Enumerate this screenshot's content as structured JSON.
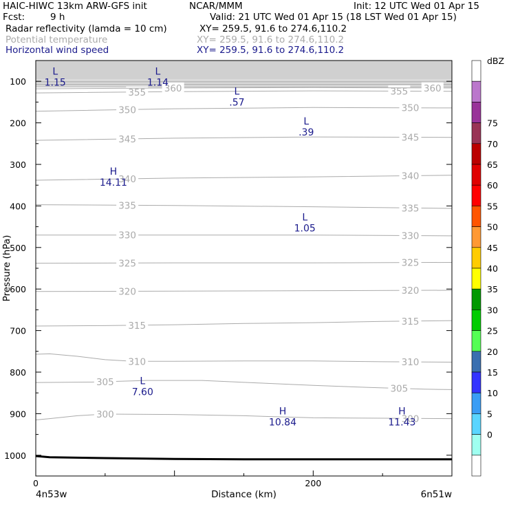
{
  "header": {
    "model": "HAIC-HIWC 13km ARW-GFS init",
    "org": "NCAR/MMM",
    "init": "Init: 12 UTC Wed 01 Apr 15",
    "fcst_label": "Fcst:",
    "fcst_value": "9 h",
    "valid": "Valid: 21 UTC Wed 01 Apr 15 (18 LST Wed 01 Apr 15)",
    "fields": [
      {
        "name": "Radar reflectivity (lamda = 10 cm)",
        "xy": "XY= 259.5, 91.6 to 274.6,110.2"
      },
      {
        "name": "Potential temperature",
        "xy": "XY= 259.5, 91.6 to 274.6,110.2"
      },
      {
        "name": "Horizontal wind speed",
        "xy": "XY= 259.5, 91.6 to 274.6,110.2"
      }
    ]
  },
  "colors": {
    "theta": "#aaaaaa",
    "wind": "#1a1a8c",
    "terrain": "#000000"
  },
  "chart_data": {
    "type": "line",
    "xlabel": "Distance (km)",
    "ylabel": "Pressure (hPa)",
    "xlim": [
      0,
      300
    ],
    "ylim": [
      1050,
      50
    ],
    "x_ticks": [
      0,
      100,
      200
    ],
    "x_tick_labels": [
      "0",
      "",
      "200"
    ],
    "y_ticks": [
      100,
      200,
      300,
      400,
      500,
      600,
      700,
      800,
      900,
      1000
    ],
    "x_end_labels": {
      "left": "4n53w",
      "right": "6n51w"
    },
    "theta_contours": [
      {
        "level": 300,
        "x": [
          0,
          10,
          30,
          50,
          100,
          150,
          200,
          250,
          300
        ],
        "p": [
          915,
          912,
          905,
          901,
          902,
          905,
          910,
          911,
          912
        ],
        "labels": [
          {
            "x": 50,
            "text": "300"
          },
          {
            "x": 270,
            "text": "300"
          }
        ]
      },
      {
        "level": 305,
        "x": [
          0,
          40,
          80,
          120,
          160,
          200,
          240,
          280,
          300
        ],
        "p": [
          825,
          824,
          820,
          820,
          826,
          832,
          837,
          841,
          842
        ],
        "labels": [
          {
            "x": 50,
            "text": "305"
          },
          {
            "x": 262,
            "text": "305"
          }
        ]
      },
      {
        "level": 310,
        "x": [
          0,
          10,
          30,
          50,
          70,
          100,
          150,
          200,
          250,
          300
        ],
        "p": [
          757,
          756,
          762,
          770,
          774,
          774,
          773,
          773,
          775,
          776
        ],
        "labels": [
          {
            "x": 73,
            "text": "310"
          },
          {
            "x": 270,
            "text": "310"
          }
        ]
      },
      {
        "level": 315,
        "x": [
          0,
          50,
          100,
          150,
          200,
          250,
          300
        ],
        "p": [
          689,
          688,
          686,
          683,
          681,
          678,
          676
        ],
        "labels": [
          {
            "x": 73,
            "text": "315"
          },
          {
            "x": 270,
            "text": "315"
          }
        ]
      },
      {
        "level": 320,
        "x": [
          0,
          100,
          200,
          300
        ],
        "p": [
          606,
          605,
          604,
          603
        ],
        "labels": [
          {
            "x": 66,
            "text": "320"
          },
          {
            "x": 270,
            "text": "320"
          }
        ]
      },
      {
        "level": 325,
        "x": [
          0,
          100,
          200,
          300
        ],
        "p": [
          538,
          537,
          537,
          536
        ],
        "labels": [
          {
            "x": 66,
            "text": "325"
          },
          {
            "x": 270,
            "text": "325"
          }
        ]
      },
      {
        "level": 330,
        "x": [
          0,
          100,
          200,
          300
        ],
        "p": [
          470,
          470,
          470,
          472
        ],
        "labels": [
          {
            "x": 66,
            "text": "330"
          },
          {
            "x": 270,
            "text": "330"
          }
        ]
      },
      {
        "level": 335,
        "x": [
          0,
          100,
          200,
          300
        ],
        "p": [
          397,
          399,
          402,
          406
        ],
        "labels": [
          {
            "x": 66,
            "text": "335"
          },
          {
            "x": 270,
            "text": "335"
          }
        ]
      },
      {
        "level": 340,
        "x": [
          0,
          100,
          200,
          300
        ],
        "p": [
          338,
          333,
          330,
          326
        ],
        "labels": [
          {
            "x": 66,
            "text": "340"
          },
          {
            "x": 270,
            "text": "340"
          }
        ]
      },
      {
        "level": 345,
        "x": [
          0,
          100,
          200,
          300
        ],
        "p": [
          242,
          237,
          234,
          235
        ],
        "labels": [
          {
            "x": 66,
            "text": "345"
          },
          {
            "x": 270,
            "text": "345"
          }
        ]
      },
      {
        "level": 350,
        "x": [
          0,
          100,
          200,
          300
        ],
        "p": [
          172,
          166,
          163,
          164
        ],
        "labels": [
          {
            "x": 66,
            "text": "350"
          },
          {
            "x": 270,
            "text": "350"
          }
        ]
      },
      {
        "level": 355,
        "x": [
          0,
          100,
          200,
          300
        ],
        "p": [
          128,
          125,
          123,
          124
        ],
        "labels": [
          {
            "x": 73,
            "text": "355"
          },
          {
            "x": 262,
            "text": "355"
          }
        ]
      },
      {
        "level": 360,
        "x": [
          0,
          100,
          200,
          300
        ],
        "p": [
          118,
          116,
          115,
          116
        ],
        "labels": [
          {
            "x": 99,
            "text": "360"
          },
          {
            "x": 286,
            "text": "360"
          }
        ]
      }
    ],
    "wind_extrema": [
      {
        "type": "L",
        "value": "1.15",
        "x": 14,
        "p": 92
      },
      {
        "type": "L",
        "value": "1.14",
        "x": 88,
        "p": 92
      },
      {
        "type": "L",
        "value": ".57",
        "x": 145,
        "p": 140
      },
      {
        "type": "L",
        "value": ".39",
        "x": 195,
        "p": 212
      },
      {
        "type": "H",
        "value": "14.11",
        "x": 56,
        "p": 333
      },
      {
        "type": "L",
        "value": "1.05",
        "x": 194,
        "p": 443
      },
      {
        "type": "L",
        "value": "7.60",
        "x": 77,
        "p": 837
      },
      {
        "type": "H",
        "value": "10.84",
        "x": 178,
        "p": 910
      },
      {
        "type": "H",
        "value": "11.43",
        "x": 264,
        "p": 910
      }
    ],
    "terrain": {
      "x": [
        0,
        10,
        50,
        100,
        150,
        200,
        250,
        300
      ],
      "p": [
        1002,
        1005,
        1007,
        1009,
        1010,
        1010,
        1010,
        1010
      ]
    },
    "colorbar": {
      "unit": "dBZ",
      "levels": [
        "0",
        "5",
        "10",
        "15",
        "20",
        "25",
        "30",
        "35",
        "40",
        "45",
        "50",
        "55",
        "60",
        "65",
        "70",
        "75"
      ],
      "colors": [
        "#ffffff",
        "#9ffff0",
        "#5ad5ff",
        "#3a9df5",
        "#3333ff",
        "#3a6fb0",
        "#55ff55",
        "#00cc00",
        "#009900",
        "#ffff00",
        "#ffcc00",
        "#ff9933",
        "#ff5500",
        "#ff0000",
        "#e00000",
        "#bb0000",
        "#993355",
        "#993399",
        "#bb77cc",
        "#ffffff"
      ]
    }
  }
}
